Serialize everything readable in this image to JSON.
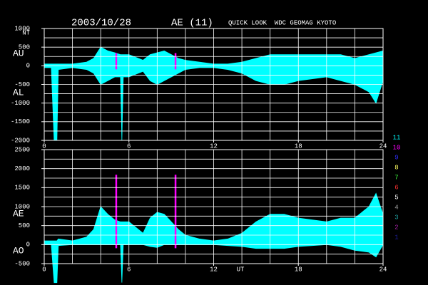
{
  "header": {
    "date": "2003/10/28",
    "index": "AE (11)",
    "source": "QUICK LOOK  WDC GEOMAG KYOTO"
  },
  "chart_data": [
    {
      "type": "area",
      "unit": "NT",
      "xlim": [
        0,
        24
      ],
      "xticks": [
        0,
        6,
        12,
        18,
        24
      ],
      "xgrid": [
        2,
        4,
        6,
        8,
        10,
        12,
        14,
        16,
        18,
        20,
        22
      ],
      "ylim": [
        -2000,
        1000
      ],
      "yticks": [
        1000,
        500,
        0,
        -500,
        -1000,
        -1500,
        -2000
      ],
      "ygrid": [
        750,
        500,
        250,
        0,
        -250,
        -500,
        -750,
        -1000,
        -1250,
        -1500,
        -1750
      ],
      "x": [
        0,
        0.5,
        0.7,
        0.9,
        1,
        2,
        3,
        3.5,
        4,
        4.5,
        5,
        5.4,
        5.5,
        5.6,
        6,
        7,
        7.5,
        8,
        8.5,
        9,
        9.5,
        10,
        11,
        12,
        13,
        14,
        15,
        16,
        17,
        18,
        19,
        20,
        21,
        22,
        23,
        23.5,
        24
      ],
      "series": [
        {
          "name": "AU",
          "color": "#00ffff",
          "values": [
            50,
            50,
            50,
            50,
            50,
            50,
            100,
            200,
            500,
            400,
            350,
            300,
            300,
            300,
            300,
            150,
            300,
            350,
            400,
            300,
            200,
            150,
            100,
            50,
            50,
            100,
            200,
            300,
            300,
            300,
            300,
            300,
            300,
            200,
            300,
            350,
            400
          ]
        },
        {
          "name": "AL",
          "color": "#00ffff",
          "values": [
            -50,
            -50,
            -2000,
            -2000,
            -100,
            -50,
            -100,
            -200,
            -500,
            -400,
            -300,
            -300,
            -2000,
            -300,
            -300,
            -150,
            -400,
            -500,
            -400,
            -300,
            -200,
            -100,
            -50,
            -50,
            -100,
            -200,
            -400,
            -500,
            -500,
            -400,
            -350,
            -300,
            -400,
            -500,
            -700,
            -1000,
            -400
          ]
        }
      ],
      "markers": {
        "color": "#ff00ff",
        "x": [
          5.1,
          9.3
        ]
      }
    },
    {
      "type": "area",
      "xlabel": "UT",
      "xlim": [
        0,
        24
      ],
      "xticks": [
        0,
        6,
        12,
        18,
        24
      ],
      "xgrid": [
        2,
        4,
        6,
        8,
        10,
        12,
        14,
        16,
        18,
        20,
        22
      ],
      "ylim": [
        -500,
        2500
      ],
      "yticks": [
        2500,
        2000,
        1500,
        1000,
        500,
        0,
        -500
      ],
      "ygrid": [
        2250,
        2000,
        1750,
        1500,
        1250,
        1000,
        750,
        500,
        250,
        0,
        -250
      ],
      "x": [
        0,
        0.5,
        0.7,
        0.9,
        1,
        2,
        3,
        3.5,
        4,
        4.5,
        5,
        5.4,
        5.5,
        5.6,
        6,
        7,
        7.5,
        8,
        8.5,
        9,
        9.5,
        10,
        11,
        12,
        13,
        14,
        15,
        16,
        17,
        18,
        19,
        20,
        21,
        22,
        23,
        23.5,
        24
      ],
      "series": [
        {
          "name": "AE",
          "color": "#00ffff",
          "values": [
            100,
            100,
            100,
            100,
            150,
            100,
            200,
            400,
            1000,
            800,
            650,
            600,
            600,
            600,
            600,
            300,
            700,
            850,
            800,
            600,
            400,
            250,
            150,
            100,
            150,
            300,
            600,
            800,
            800,
            700,
            650,
            600,
            700,
            700,
            1000,
            1350,
            800
          ]
        },
        {
          "name": "AO",
          "color": "#00ffff",
          "values": [
            0,
            0,
            -1000,
            -1000,
            -25,
            0,
            0,
            0,
            0,
            0,
            25,
            0,
            -1000,
            0,
            0,
            0,
            -50,
            -75,
            0,
            0,
            0,
            25,
            25,
            0,
            -25,
            -50,
            -100,
            -100,
            -100,
            -50,
            -25,
            0,
            -50,
            -150,
            -200,
            -325,
            0
          ]
        }
      ],
      "markers": {
        "color": "#ff00ff",
        "x": [
          5.1,
          9.3
        ]
      }
    }
  ],
  "legend": [
    {
      "label": "11",
      "color": "#00ffff"
    },
    {
      "label": "10",
      "color": "#ff00ff"
    },
    {
      "label": "9",
      "color": "#3030ff"
    },
    {
      "label": "8",
      "color": "#ffff60"
    },
    {
      "label": "7",
      "color": "#40ff40"
    },
    {
      "label": "6",
      "color": "#ff3030"
    },
    {
      "label": "5",
      "color": "#ffffff"
    },
    {
      "label": "4",
      "color": "#a0a0a0"
    },
    {
      "label": "3",
      "color": "#20a0a0"
    },
    {
      "label": "2",
      "color": "#a020a0"
    },
    {
      "label": "1",
      "color": "#2020a0"
    }
  ]
}
